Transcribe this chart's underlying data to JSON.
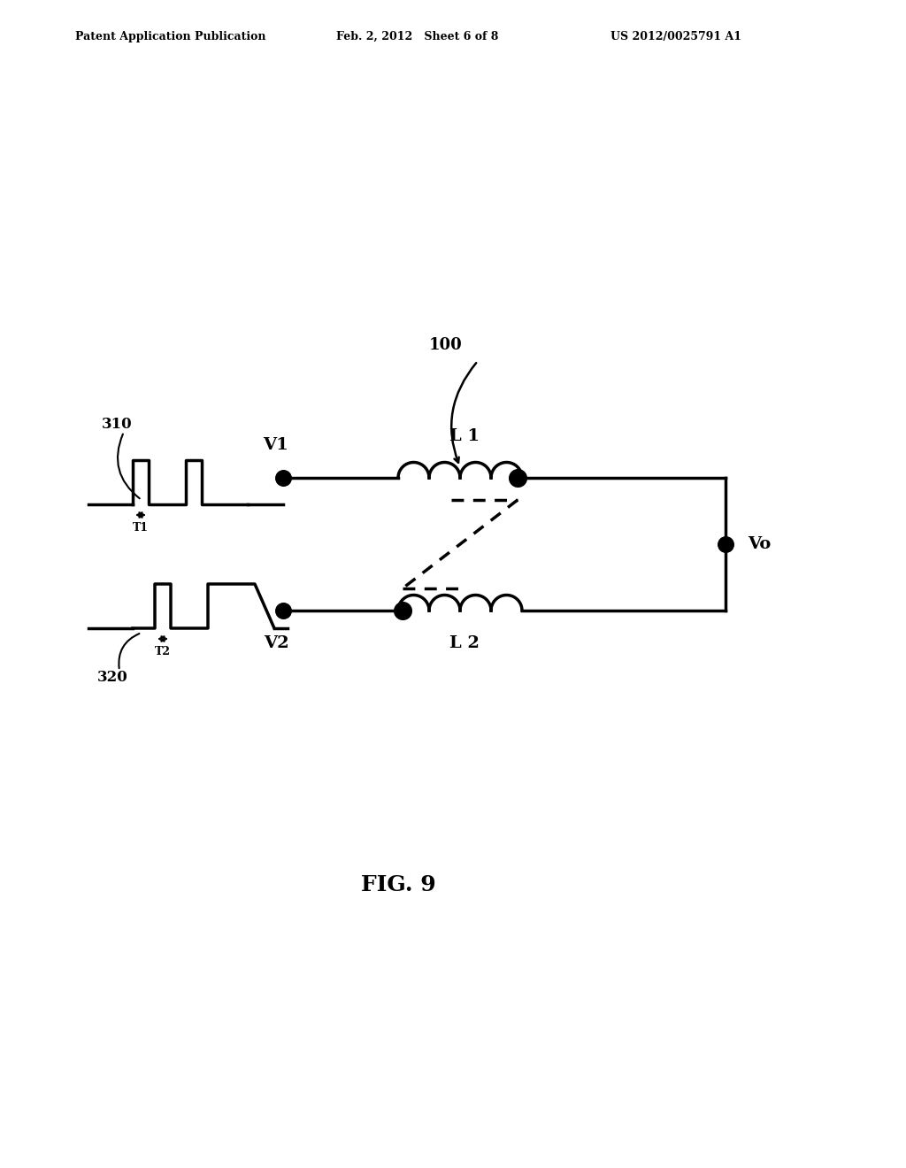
{
  "bg_color": "#ffffff",
  "header_left": "Patent Application Publication",
  "header_mid": "Feb. 2, 2012   Sheet 6 of 8",
  "header_right": "US 2012/0025791 A1",
  "fig_label": "FIG. 9",
  "label_100": "100",
  "label_310": "310",
  "label_320": "320",
  "label_V1": "V1",
  "label_V2": "V2",
  "label_L1": "L 1",
  "label_L2": "L 2",
  "label_Vo": "Vo",
  "label_T1": "T1",
  "label_T2": "T2",
  "line_color": "#000000",
  "line_width": 2.5,
  "dot_size": 80
}
